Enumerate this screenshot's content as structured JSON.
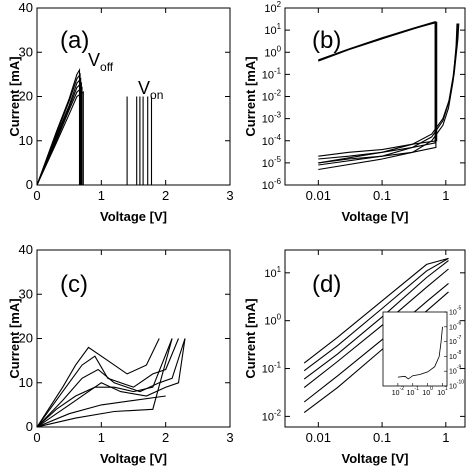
{
  "chart_data": [
    {
      "panel": "(a)",
      "type": "line",
      "xlabel": "Voltage [V]",
      "ylabel": "Current [mA]",
      "xlim": [
        0,
        3
      ],
      "ylim": [
        0,
        40
      ],
      "x_ticks": [
        "0",
        "1",
        "2",
        "3"
      ],
      "y_ticks": [
        "0",
        "10",
        "20",
        "30",
        "40"
      ],
      "annotations": [
        {
          "text": "V",
          "sub": "off"
        },
        {
          "text": "V",
          "sub": "on"
        }
      ],
      "series": [
        {
          "x": [
            0,
            0.3,
            0.5,
            0.62,
            0.68,
            0.68,
            1.5,
            1.6,
            1.6
          ],
          "y": [
            0,
            11,
            18,
            23,
            24,
            0,
            0,
            0,
            20
          ]
        },
        {
          "x": [
            0,
            0.3,
            0.5,
            0.62,
            0.66,
            0.66,
            1.35,
            1.4,
            1.4
          ],
          "y": [
            0,
            12,
            19.5,
            25,
            26,
            0,
            0,
            0,
            20
          ]
        },
        {
          "x": [
            0,
            0.3,
            0.5,
            0.62,
            0.7,
            0.7,
            1.55,
            1.65,
            1.65
          ],
          "y": [
            0,
            10,
            17,
            21,
            22,
            0,
            0,
            0,
            20
          ]
        },
        {
          "x": [
            0,
            0.3,
            0.5,
            0.62,
            0.72,
            0.72,
            1.6,
            1.72,
            1.72
          ],
          "y": [
            0,
            9.5,
            16,
            20,
            21,
            0,
            0,
            0,
            20
          ]
        },
        {
          "x": [
            0,
            0.3,
            0.5,
            0.62,
            0.67,
            0.67,
            1.45,
            1.55,
            1.55
          ],
          "y": [
            0,
            11.5,
            19,
            24,
            25,
            0,
            0,
            0,
            20
          ]
        },
        {
          "x": [
            0,
            0.3,
            0.5,
            0.62,
            0.69,
            0.69,
            1.62,
            1.78,
            1.78
          ],
          "y": [
            0,
            10.5,
            17.5,
            22,
            23,
            0,
            0,
            0,
            20
          ]
        }
      ]
    },
    {
      "panel": "(b)",
      "type": "line",
      "xscale": "log",
      "yscale": "log",
      "xlabel": "Voltage [V]",
      "ylabel": "Current [mA]",
      "xlim": [
        0.003,
        2
      ],
      "ylim": [
        1e-06,
        100
      ],
      "x_ticks": [
        "0.01",
        "0.1",
        "1"
      ],
      "y_ticks": [
        "10^2",
        "10^1",
        "10^0",
        "10^-1",
        "10^-2",
        "10^-3",
        "10^-4",
        "10^-5",
        "10^-6"
      ],
      "series": [
        {
          "x": [
            0.01,
            0.03,
            0.1,
            0.3,
            0.7,
            0.7,
            0.3,
            0.1,
            0.03,
            0.01
          ],
          "y": [
            0.4,
            1.3,
            4,
            11,
            23,
            5e-05,
            3e-05,
            2e-05,
            1.5e-05,
            1e-05
          ]
        },
        {
          "x": [
            0.01,
            0.03,
            0.1,
            0.3,
            0.68,
            0.68,
            0.3,
            0.1,
            0.03,
            0.01
          ],
          "y": [
            0.45,
            1.4,
            4.5,
            12,
            24,
            8e-05,
            5e-05,
            3e-05,
            2e-05,
            1.5e-05
          ]
        },
        {
          "x": [
            0.01,
            0.03,
            0.1,
            0.3,
            0.72,
            0.72,
            0.3,
            0.1,
            0.03,
            0.01
          ],
          "y": [
            0.42,
            1.35,
            4.2,
            11.5,
            22,
            0.0001,
            7e-05,
            4e-05,
            3e-05,
            2e-05
          ]
        },
        {
          "x": [
            0.01,
            0.1,
            0.3,
            0.6,
            0.9,
            1.1,
            1.3,
            1.45,
            1.5
          ],
          "y": [
            5e-06,
            1.5e-05,
            3e-05,
            0.0001,
            0.0005,
            0.003,
            0.05,
            2,
            20
          ]
        },
        {
          "x": [
            0.01,
            0.1,
            0.3,
            0.6,
            0.9,
            1.1,
            1.3,
            1.5,
            1.55
          ],
          "y": [
            8e-06,
            2e-05,
            5e-05,
            0.00015,
            0.0008,
            0.005,
            0.08,
            3,
            20
          ]
        },
        {
          "x": [
            0.01,
            0.1,
            0.3,
            0.6,
            0.9,
            1.15,
            1.35,
            1.55,
            1.6
          ],
          "y": [
            1e-05,
            3e-05,
            7e-05,
            0.0002,
            0.001,
            0.008,
            0.1,
            4,
            20
          ]
        }
      ]
    },
    {
      "panel": "(c)",
      "type": "line",
      "xlabel": "Voltage [V]",
      "ylabel": "Current [mA]",
      "xlim": [
        0,
        3
      ],
      "ylim": [
        0,
        40
      ],
      "x_ticks": [
        "0",
        "1",
        "2",
        "3"
      ],
      "y_ticks": [
        "0",
        "10",
        "20",
        "30",
        "40"
      ],
      "series": [
        {
          "x": [
            0,
            0.4,
            0.7,
            0.9,
            1.1,
            1.5,
            1.8,
            2.0,
            2.2
          ],
          "y": [
            0,
            8,
            14,
            16,
            11,
            9,
            12,
            13,
            20
          ]
        },
        {
          "x": [
            0,
            0.4,
            0.7,
            0.95,
            1.2,
            1.6,
            1.9,
            2.1,
            2.3
          ],
          "y": [
            0,
            6,
            11,
            13,
            10,
            8,
            10,
            11,
            20
          ]
        },
        {
          "x": [
            0,
            0.5,
            0.8,
            1.0,
            1.3,
            1.7,
            2.0,
            2.2,
            2.3
          ],
          "y": [
            0,
            5,
            8,
            10,
            8,
            7,
            9,
            10,
            20
          ]
        },
        {
          "x": [
            0,
            0.4,
            0.6,
            0.8,
            1.1,
            1.4,
            1.7,
            1.9
          ],
          "y": [
            0,
            9,
            14,
            18,
            15,
            12,
            14,
            20
          ]
        },
        {
          "x": [
            0,
            0.3,
            0.6,
            0.9,
            1.2,
            1.5,
            1.8,
            2.1
          ],
          "y": [
            0,
            4,
            7,
            9,
            9,
            8,
            9,
            20
          ]
        },
        {
          "x": [
            0,
            0.5,
            1.0,
            1.5,
            2.0
          ],
          "y": [
            0,
            3,
            5,
            6,
            7
          ]
        },
        {
          "x": [
            0,
            0.6,
            1.2,
            1.8,
            2.1
          ],
          "y": [
            0,
            2,
            3.5,
            4,
            20
          ]
        }
      ]
    },
    {
      "panel": "(d)",
      "type": "line",
      "xscale": "log",
      "yscale": "log",
      "xlabel": "Voltage [V]",
      "ylabel": "Current [mA]",
      "xlim": [
        0.003,
        2
      ],
      "ylim": [
        0.006,
        30
      ],
      "x_ticks": [
        "0.01",
        "0.1",
        "1"
      ],
      "y_ticks": [
        "10^1",
        "10^0",
        "10^-1",
        "10^-2"
      ],
      "series": [
        {
          "x": [
            0.006,
            0.02,
            0.1,
            0.5,
            1.1
          ],
          "y": [
            0.012,
            0.04,
            0.25,
            1.6,
            4
          ]
        },
        {
          "x": [
            0.006,
            0.02,
            0.1,
            0.5,
            1.1
          ],
          "y": [
            0.02,
            0.07,
            0.4,
            2.5,
            6
          ]
        },
        {
          "x": [
            0.006,
            0.02,
            0.1,
            0.5,
            1.1
          ],
          "y": [
            0.04,
            0.14,
            0.8,
            5,
            12
          ]
        },
        {
          "x": [
            0.006,
            0.02,
            0.1,
            0.5,
            1.1
          ],
          "y": [
            0.06,
            0.2,
            1.2,
            8,
            18
          ]
        },
        {
          "x": [
            0.006,
            0.02,
            0.1,
            0.5,
            1.1
          ],
          "y": [
            0.09,
            0.3,
            1.8,
            11,
            20
          ]
        },
        {
          "x": [
            0.006,
            0.02,
            0.1,
            0.5,
            1.1
          ],
          "y": [
            0.13,
            0.45,
            2.6,
            15,
            20
          ]
        }
      ],
      "inset": {
        "xscale": "log",
        "yscale": "log",
        "xlim": [
          0.001,
          20
        ],
        "ylim": [
          1e-10,
          1e-05
        ],
        "x_ticks": [
          "10^-2",
          "10^-1",
          "10^0",
          "10^1"
        ],
        "y_ticks": [
          "10^-5",
          "10^-6",
          "10^-7",
          "10^-8",
          "10^-9",
          "10^-10"
        ],
        "series": [
          {
            "x": [
              0.01,
              0.03,
              0.05,
              0.1,
              0.3,
              1,
              3,
              6,
              8,
              10
            ],
            "y": [
              4e-10,
              4.5e-10,
              3e-10,
              5e-10,
              6e-10,
              9e-10,
              2e-09,
              1e-08,
              1e-07,
              1e-06
            ]
          }
        ]
      }
    }
  ]
}
